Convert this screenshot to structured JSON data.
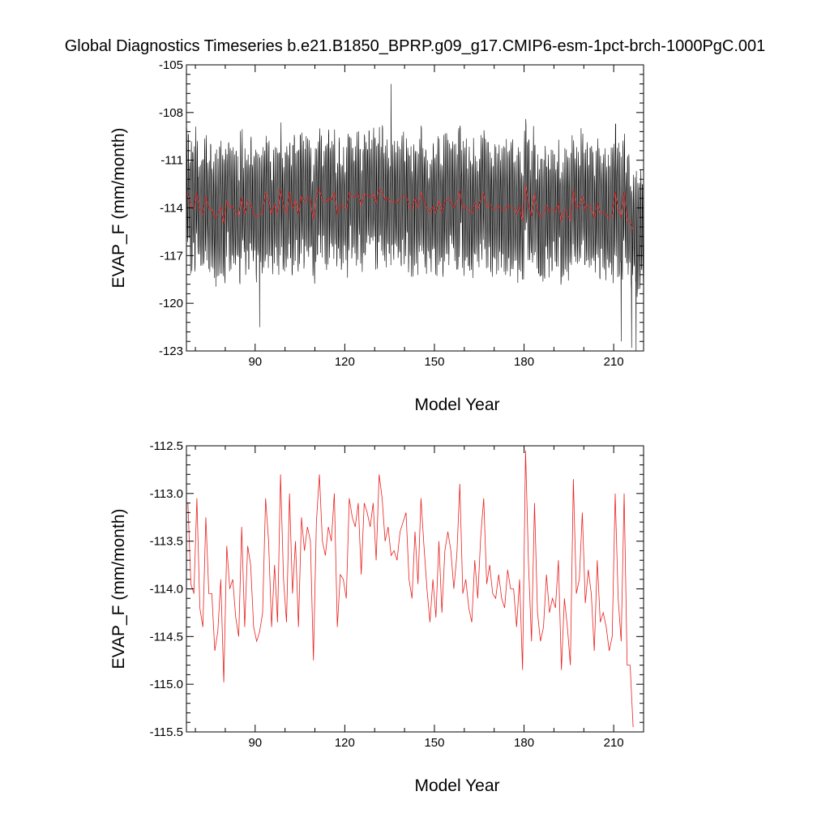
{
  "title": "Global Diagnostics Timeseries b.e21.B1850_BPRP.g09_g17.CMIP6-esm-1pct-brch-1000PgC.001",
  "colors": {
    "monthly": "#000000",
    "annual": "#e8211e",
    "axes": "#000000"
  },
  "chart_data": [
    {
      "type": "line",
      "xlabel": "Model Year",
      "ylabel": "EVAP_F (mm/month)",
      "xlim": [
        67,
        220
      ],
      "ylim": [
        -123,
        -105
      ],
      "xticks": [
        90,
        120,
        150,
        180,
        210
      ],
      "yticks": [
        -105,
        -108,
        -111,
        -114,
        -117,
        -120,
        -123
      ],
      "yticklabels": [
        "-105",
        "-108",
        "-111",
        "-114",
        "-117",
        "-120",
        "-123"
      ],
      "series": [
        {
          "role": "monthly",
          "x_start": 67,
          "step": 0.0833333,
          "y_mean": -114.0,
          "y_amplitude": 4.0,
          "noise": 1.2,
          "extremes": [
            {
              "x": 135.5,
              "y": -106.2
            },
            {
              "x": 91.5,
              "y": -121.5
            },
            {
              "x": 212.5,
              "y": -122.4
            },
            {
              "x": 216.0,
              "y": -122.8
            },
            {
              "x": 217.5,
              "y": -123.0
            }
          ]
        },
        {
          "role": "annual",
          "ref": "annual_means"
        }
      ],
      "grid": false
    },
    {
      "type": "line",
      "xlabel": "Model Year",
      "ylabel": "EVAP_F (mm/month)",
      "xlim": [
        67,
        220
      ],
      "ylim": [
        -115.5,
        -112.5
      ],
      "xticks": [
        90,
        120,
        150,
        180,
        210
      ],
      "yticks": [
        -112.5,
        -113.0,
        -113.5,
        -114.0,
        -114.5,
        -115.0,
        -115.5
      ],
      "yticklabels": [
        "-112.5",
        "-113.0",
        "-113.5",
        "-114.0",
        "-114.5",
        "-115.0",
        "-115.5"
      ],
      "series": [
        {
          "role": "annual",
          "ref": "annual_means"
        }
      ],
      "grid": false
    }
  ],
  "annual_means": {
    "x_start": 67,
    "values": [
      -113.1,
      -113.95,
      -114.05,
      -113.05,
      -114.2,
      -114.4,
      -113.25,
      -114.05,
      -114.05,
      -114.65,
      -114.45,
      -113.9,
      -114.98,
      -113.55,
      -114.0,
      -113.9,
      -114.3,
      -114.5,
      -113.35,
      -114.4,
      -113.55,
      -113.75,
      -114.4,
      -114.55,
      -114.45,
      -114.25,
      -113.05,
      -113.5,
      -114.4,
      -113.75,
      -114.35,
      -112.8,
      -113.9,
      -114.35,
      -113.0,
      -114.05,
      -113.5,
      -114.4,
      -113.25,
      -113.6,
      -113.35,
      -113.5,
      -114.75,
      -113.3,
      -112.8,
      -113.5,
      -113.65,
      -113.35,
      -113.5,
      -113.0,
      -114.4,
      -113.85,
      -113.9,
      -114.1,
      -113.05,
      -113.25,
      -113.35,
      -113.1,
      -113.85,
      -113.1,
      -113.2,
      -113.35,
      -113.1,
      -113.7,
      -112.8,
      -113.05,
      -113.5,
      -113.35,
      -113.65,
      -113.6,
      -113.7,
      -113.4,
      -113.3,
      -113.2,
      -113.9,
      -114.1,
      -113.4,
      -113.95,
      -113.05,
      -113.55,
      -114.0,
      -114.35,
      -113.9,
      -114.3,
      -113.5,
      -114.25,
      -113.6,
      -113.4,
      -113.6,
      -114.0,
      -113.65,
      -112.9,
      -114.05,
      -113.9,
      -114.2,
      -114.35,
      -113.7,
      -114.1,
      -113.45,
      -113.05,
      -113.95,
      -113.75,
      -114.05,
      -114.1,
      -113.85,
      -114.1,
      -114.2,
      -113.8,
      -114.0,
      -114.0,
      -114.4,
      -113.9,
      -114.85,
      -112.55,
      -113.75,
      -114.55,
      -113.1,
      -114.25,
      -114.55,
      -114.4,
      -113.85,
      -114.25,
      -114.1,
      -114.2,
      -113.7,
      -114.85,
      -114.1,
      -114.4,
      -114.8,
      -112.85,
      -114.05,
      -113.9,
      -113.2,
      -114.15,
      -113.8,
      -114.05,
      -114.65,
      -113.7,
      -114.35,
      -114.25,
      -114.4,
      -114.65,
      -114.5,
      -113.0,
      -114.1,
      -114.55,
      -113.0,
      -114.8,
      -114.8,
      -115.45
    ]
  }
}
